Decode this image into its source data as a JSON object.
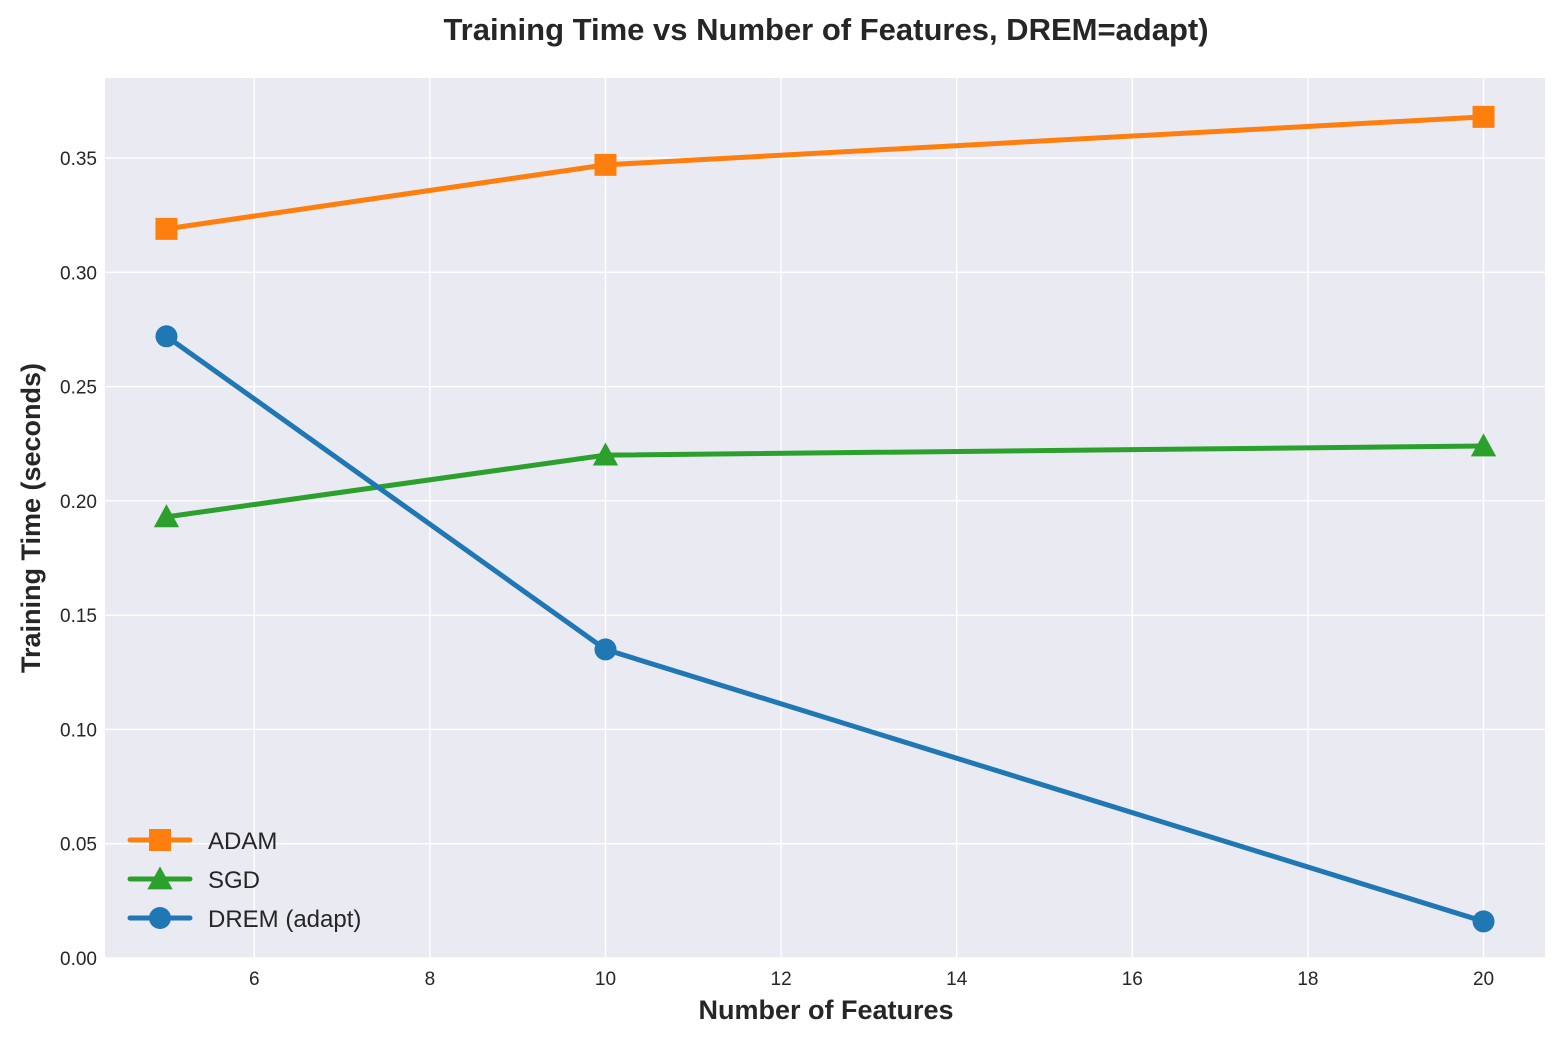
{
  "chart_data": {
    "type": "line",
    "title": "Training Time vs Number of Features, DREM=adapt)",
    "xlabel": "Number of Features",
    "ylabel": "Training Time (seconds)",
    "x": [
      5,
      10,
      20
    ],
    "xlim": [
      4.3,
      20.7
    ],
    "ylim": [
      0.0,
      0.385
    ],
    "xticks": [
      6,
      8,
      10,
      12,
      14,
      16,
      18,
      20
    ],
    "yticks": [
      0.0,
      0.05,
      0.1,
      0.15,
      0.2,
      0.25,
      0.3,
      0.35
    ],
    "xtick_labels": [
      "6",
      "8",
      "10",
      "12",
      "14",
      "16",
      "18",
      "20"
    ],
    "ytick_labels": [
      "0.00",
      "0.05",
      "0.10",
      "0.15",
      "0.20",
      "0.25",
      "0.30",
      "0.35"
    ],
    "grid": true,
    "legend_position": "lower-left",
    "series": [
      {
        "name": "ADAM",
        "values": [
          0.319,
          0.347,
          0.368
        ],
        "color": "#ff7f0e",
        "marker": "square"
      },
      {
        "name": "SGD",
        "values": [
          0.193,
          0.22,
          0.224
        ],
        "color": "#2ca02c",
        "marker": "triangle"
      },
      {
        "name": "DREM (adapt)",
        "values": [
          0.272,
          0.135,
          0.016
        ],
        "color": "#1f77b4",
        "marker": "circle"
      }
    ]
  }
}
